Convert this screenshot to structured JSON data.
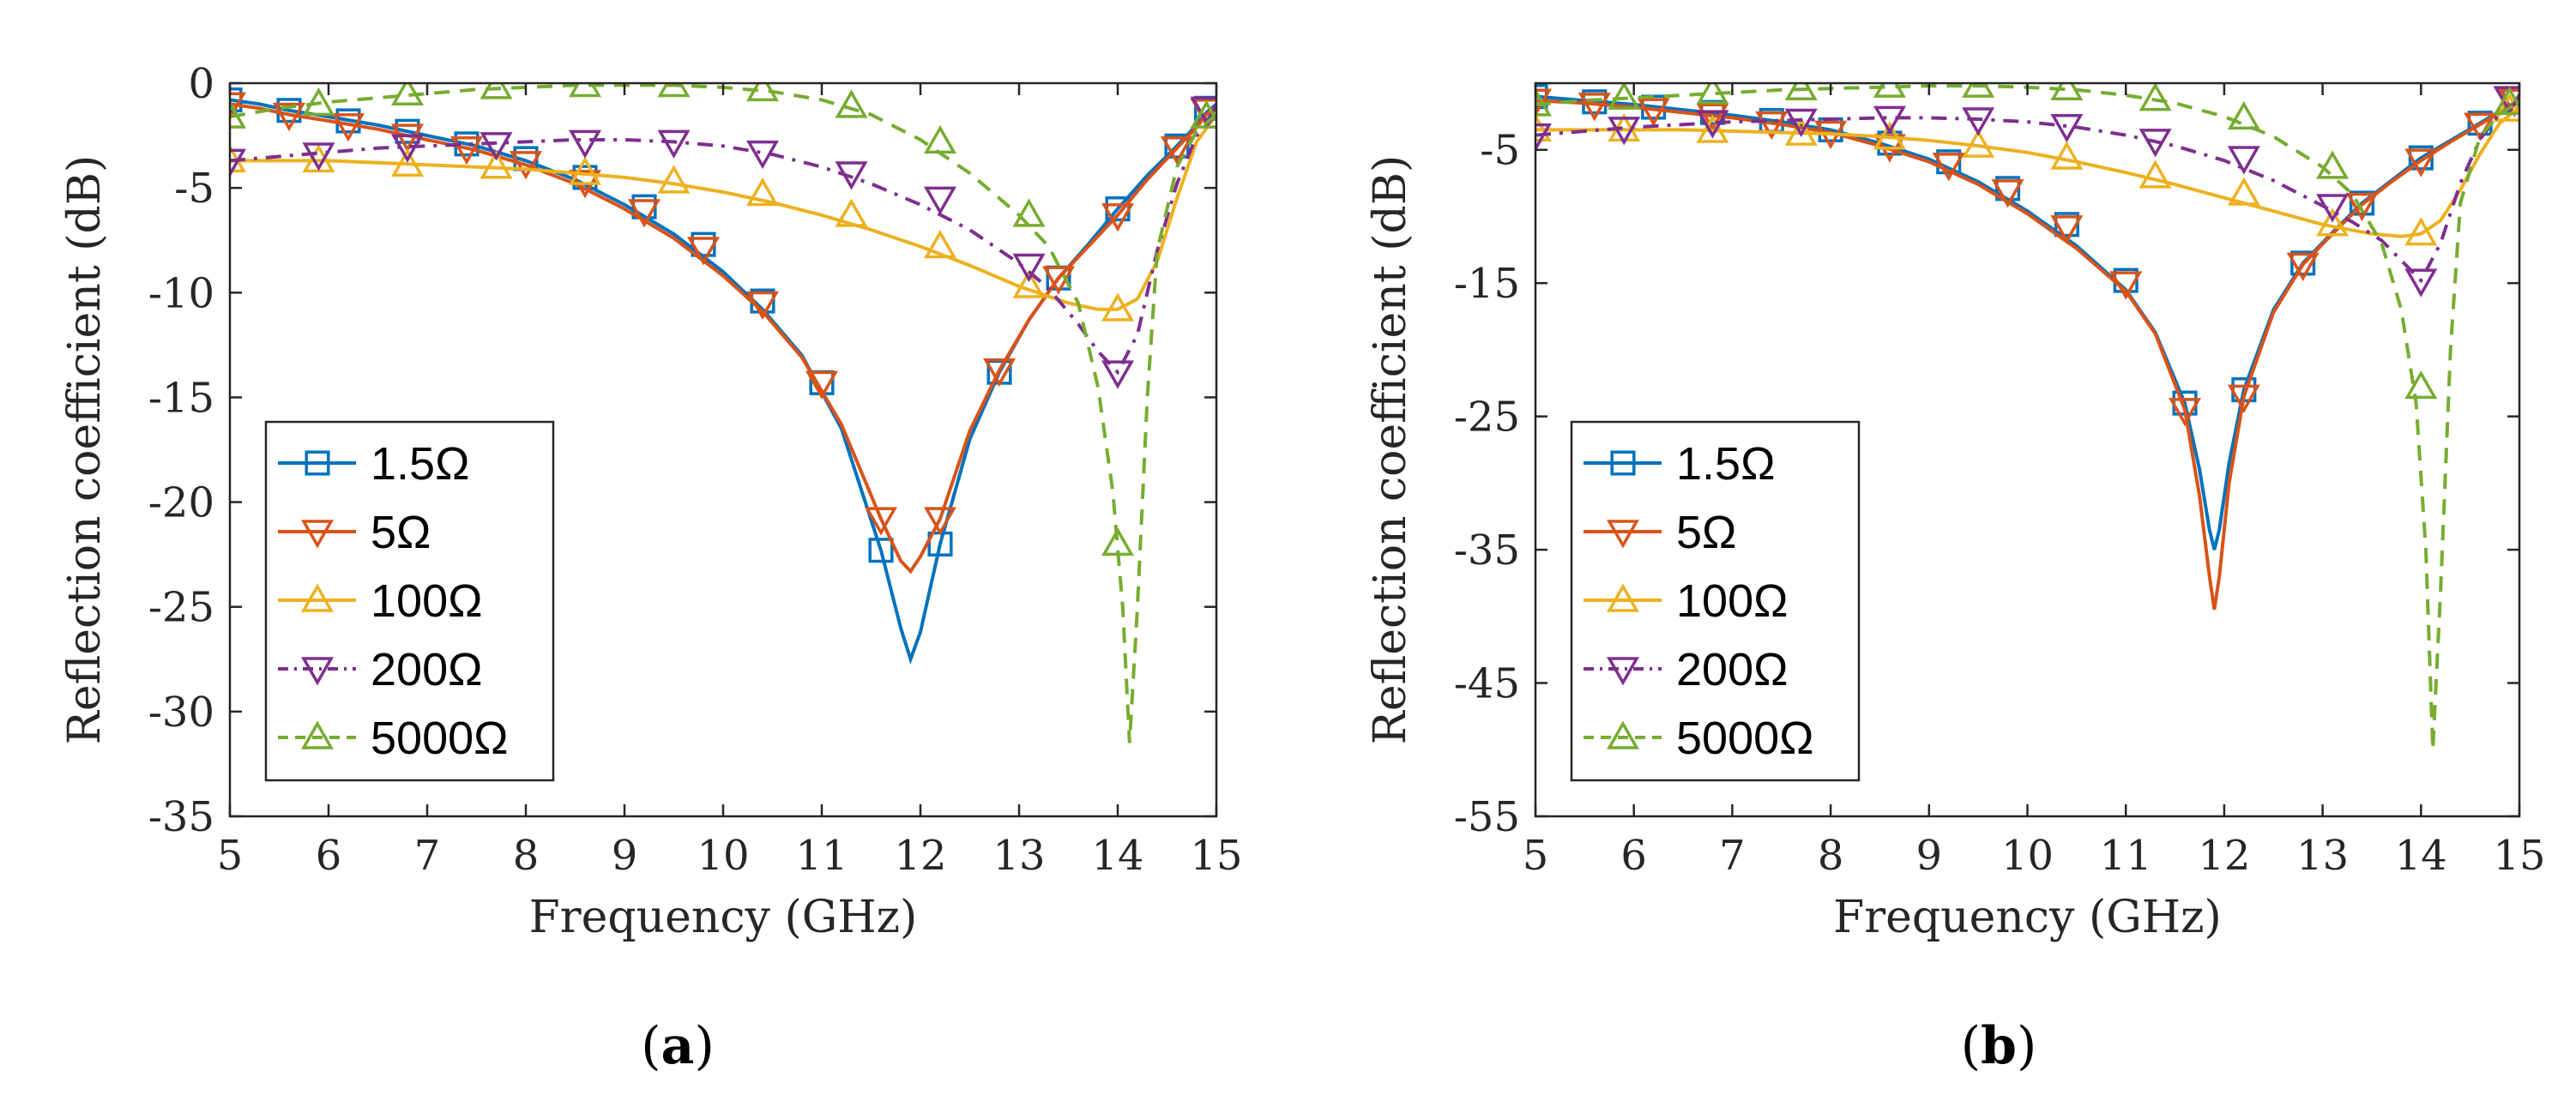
{
  "chart_data": [
    {
      "type": "line",
      "panel_label": "a",
      "xlabel": "Frequency (GHz)",
      "ylabel": "Reflection coefficient (dB)",
      "xlim": [
        5,
        15
      ],
      "ylim": [
        -35,
        0
      ],
      "xticks": [
        5,
        6,
        7,
        8,
        9,
        10,
        11,
        12,
        13,
        14,
        15
      ],
      "yticks": [
        0,
        -5,
        -10,
        -15,
        -20,
        -25,
        -30,
        -35
      ],
      "legend_position": "bottom-left",
      "series": [
        {
          "name": "1.5Ω",
          "color": "#0072BD",
          "dash": "solid",
          "marker": "square",
          "x": [
            5,
            5.3,
            5.6,
            6,
            6.5,
            7,
            7.5,
            8,
            8.5,
            9,
            9.5,
            10,
            10.4,
            10.8,
            11.2,
            11.6,
            11.8,
            11.9,
            12.0,
            12.2,
            12.5,
            12.8,
            13.1,
            13.4,
            13.7,
            14.0,
            14.3,
            14.6,
            14.8,
            14.9,
            15
          ],
          "y": [
            -0.8,
            -1.0,
            -1.3,
            -1.6,
            -2.0,
            -2.5,
            -3.0,
            -3.7,
            -4.6,
            -5.8,
            -7.2,
            -9.0,
            -10.8,
            -13.0,
            -16.5,
            -22.3,
            -26.0,
            -27.5,
            -26.2,
            -22.0,
            -17.0,
            -13.8,
            -11.3,
            -9.3,
            -7.7,
            -6.0,
            -4.4,
            -3.0,
            -2.0,
            -1.4,
            -1.0
          ],
          "marker_x": [
            5,
            5.6,
            6.2,
            6.8,
            7.4,
            8.0,
            8.6,
            9.2,
            9.8,
            10.4,
            11.0,
            11.6,
            12.2,
            12.8,
            13.4,
            14.0,
            14.6,
            14.9
          ],
          "marker_y": [
            -0.8,
            -1.3,
            -1.8,
            -2.3,
            -2.9,
            -3.6,
            -4.5,
            -5.9,
            -7.7,
            -10.4,
            -14.3,
            -22.3,
            -22.0,
            -13.8,
            -9.3,
            -6.0,
            -3.0,
            -1.2
          ]
        },
        {
          "name": "5Ω",
          "color": "#D95319",
          "dash": "solid",
          "marker": "triangle-down",
          "x": [
            5,
            5.3,
            5.6,
            6,
            6.5,
            7,
            7.5,
            8,
            8.5,
            9,
            9.5,
            10,
            10.4,
            10.8,
            11.2,
            11.6,
            11.8,
            11.9,
            12.0,
            12.2,
            12.5,
            12.8,
            13.1,
            13.4,
            13.7,
            14.0,
            14.3,
            14.6,
            14.8,
            14.9,
            15
          ],
          "y": [
            -1.0,
            -1.2,
            -1.5,
            -1.8,
            -2.2,
            -2.7,
            -3.2,
            -3.9,
            -4.8,
            -6.0,
            -7.4,
            -9.2,
            -10.9,
            -13.1,
            -16.3,
            -20.8,
            -22.8,
            -23.3,
            -22.6,
            -20.8,
            -16.6,
            -13.7,
            -11.3,
            -9.3,
            -7.8,
            -6.3,
            -4.6,
            -3.1,
            -2.1,
            -1.5,
            -1.1
          ],
          "marker_x": [
            5,
            5.6,
            6.2,
            6.8,
            7.4,
            8.0,
            8.6,
            9.2,
            9.8,
            10.4,
            11.0,
            11.6,
            12.2,
            12.8,
            13.4,
            14.0,
            14.6,
            14.9
          ],
          "marker_y": [
            -1.0,
            -1.5,
            -2.0,
            -2.5,
            -3.1,
            -3.8,
            -4.7,
            -6.1,
            -7.9,
            -10.5,
            -14.3,
            -20.8,
            -20.8,
            -13.7,
            -9.3,
            -6.3,
            -3.1,
            -1.3
          ]
        },
        {
          "name": "100Ω",
          "color": "#EDB120",
          "dash": "solid",
          "marker": "triangle-up",
          "x": [
            5,
            5.5,
            6,
            6.5,
            7,
            7.5,
            8,
            8.5,
            9,
            9.5,
            10,
            10.5,
            11,
            11.5,
            12,
            12.5,
            13,
            13.5,
            13.8,
            14.0,
            14.2,
            14.4,
            14.6,
            14.8,
            15
          ],
          "y": [
            -3.7,
            -3.7,
            -3.7,
            -3.8,
            -3.9,
            -4.0,
            -4.1,
            -4.3,
            -4.5,
            -4.8,
            -5.2,
            -5.7,
            -6.3,
            -7.0,
            -7.8,
            -8.7,
            -9.7,
            -10.5,
            -10.8,
            -10.8,
            -10.3,
            -8.5,
            -5.5,
            -2.8,
            -1.5
          ],
          "marker_x": [
            5,
            5.9,
            6.8,
            7.7,
            8.6,
            9.5,
            10.4,
            11.3,
            12.2,
            13.1,
            14.0,
            14.9
          ],
          "marker_y": [
            -3.7,
            -3.7,
            -3.9,
            -4.0,
            -4.3,
            -4.7,
            -5.3,
            -6.3,
            -7.8,
            -9.7,
            -10.8,
            -1.6
          ]
        },
        {
          "name": "200Ω",
          "color": "#7E2F8E",
          "dash": "dashdot",
          "marker": "triangle-down",
          "x": [
            5,
            5.5,
            6,
            6.5,
            7,
            7.5,
            8,
            8.5,
            9,
            9.5,
            10,
            10.5,
            11,
            11.5,
            12,
            12.5,
            13,
            13.3,
            13.6,
            13.8,
            14.0,
            14.2,
            14.4,
            14.6,
            14.8,
            15
          ],
          "y": [
            -3.7,
            -3.5,
            -3.3,
            -3.1,
            -3.0,
            -2.9,
            -2.8,
            -2.7,
            -2.7,
            -2.8,
            -3.0,
            -3.4,
            -4.0,
            -4.8,
            -5.8,
            -7.0,
            -8.6,
            -9.8,
            -11.5,
            -12.8,
            -13.8,
            -12.0,
            -8.0,
            -4.8,
            -2.5,
            -1.5
          ],
          "marker_x": [
            5,
            5.9,
            6.8,
            7.7,
            8.6,
            9.5,
            10.4,
            11.3,
            12.2,
            13.1,
            14.0,
            14.9
          ],
          "marker_y": [
            -3.7,
            -3.4,
            -3.0,
            -2.9,
            -2.8,
            -2.8,
            -3.3,
            -4.3,
            -5.5,
            -8.7,
            -13.8,
            -1.2
          ]
        },
        {
          "name": "5000Ω",
          "color": "#77AC30",
          "dash": "dash",
          "marker": "triangle-up",
          "x": [
            5,
            5.5,
            6,
            6.5,
            7,
            7.5,
            8,
            8.5,
            9,
            9.5,
            10,
            10.5,
            11,
            11.5,
            12,
            12.5,
            13,
            13.3,
            13.6,
            13.8,
            13.95,
            14.05,
            14.12,
            14.2,
            14.3,
            14.4,
            14.6,
            14.8,
            15
          ],
          "y": [
            -1.6,
            -1.2,
            -0.9,
            -0.7,
            -0.5,
            -0.3,
            -0.2,
            -0.1,
            -0.1,
            -0.1,
            -0.2,
            -0.4,
            -0.8,
            -1.5,
            -2.7,
            -4.3,
            -6.3,
            -7.8,
            -10.5,
            -14.5,
            -19.5,
            -25.0,
            -31.5,
            -25.0,
            -15.0,
            -8.0,
            -4.0,
            -2.3,
            -1.5
          ],
          "marker_x": [
            5,
            5.9,
            6.8,
            7.7,
            8.6,
            9.5,
            10.4,
            11.3,
            12.2,
            13.1,
            14.0,
            14.9
          ],
          "marker_y": [
            -1.6,
            -1.0,
            -0.5,
            -0.2,
            -0.1,
            -0.1,
            -0.3,
            -1.1,
            -2.8,
            -6.3,
            -22.0,
            -1.6
          ]
        }
      ]
    },
    {
      "type": "line",
      "panel_label": "b",
      "xlabel": "Frequency (GHz)",
      "ylabel": "Reflection coefficient (dB)",
      "xlim": [
        5,
        15
      ],
      "ylim": [
        -55,
        0
      ],
      "xticks": [
        5,
        6,
        7,
        8,
        9,
        10,
        11,
        12,
        13,
        14,
        15
      ],
      "yticks": [
        -5,
        -15,
        -25,
        -35,
        -45,
        -55
      ],
      "legend_position": "bottom-left",
      "series": [
        {
          "name": "1.5Ω",
          "color": "#0072BD",
          "dash": "solid",
          "marker": "square",
          "x": [
            5,
            5.5,
            6,
            6.5,
            7,
            7.5,
            8,
            8.5,
            9,
            9.5,
            10,
            10.5,
            11,
            11.3,
            11.6,
            11.75,
            11.85,
            11.9,
            11.95,
            12.05,
            12.2,
            12.5,
            12.8,
            13.1,
            13.4,
            13.7,
            14.0,
            14.3,
            14.6,
            14.8,
            15
          ],
          "y": [
            -1.0,
            -1.3,
            -1.6,
            -2.0,
            -2.4,
            -2.9,
            -3.5,
            -4.5,
            -5.7,
            -7.4,
            -9.6,
            -12.2,
            -15.5,
            -18.7,
            -24.0,
            -29.0,
            -33.5,
            -35.0,
            -33.5,
            -28.5,
            -23.0,
            -17.0,
            -13.5,
            -11.2,
            -9.0,
            -7.3,
            -5.6,
            -4.3,
            -3.0,
            -2.1,
            -1.3
          ],
          "marker_x": [
            5,
            5.6,
            6.2,
            6.8,
            7.4,
            8.0,
            8.6,
            9.2,
            9.8,
            10.4,
            11.0,
            11.6,
            12.2,
            12.8,
            13.4,
            14.0,
            14.6,
            14.95
          ],
          "marker_y": [
            -1.0,
            -1.4,
            -1.8,
            -2.2,
            -2.8,
            -3.5,
            -4.5,
            -5.9,
            -7.9,
            -10.6,
            -14.8,
            -24.0,
            -23.0,
            -13.5,
            -9.0,
            -5.6,
            -3.0,
            -1.3
          ]
        },
        {
          "name": "5Ω",
          "color": "#D95319",
          "dash": "solid",
          "marker": "triangle-down",
          "x": [
            5,
            5.5,
            6,
            6.5,
            7,
            7.5,
            8,
            8.5,
            9,
            9.5,
            10,
            10.5,
            11,
            11.3,
            11.6,
            11.75,
            11.85,
            11.9,
            11.95,
            12.05,
            12.2,
            12.5,
            12.8,
            13.1,
            13.4,
            13.7,
            14.0,
            14.3,
            14.6,
            14.8,
            15
          ],
          "y": [
            -1.3,
            -1.5,
            -1.8,
            -2.2,
            -2.6,
            -3.1,
            -3.7,
            -4.7,
            -5.9,
            -7.6,
            -9.8,
            -12.4,
            -15.6,
            -18.8,
            -24.5,
            -31.0,
            -37.0,
            -39.5,
            -37.0,
            -30.0,
            -23.5,
            -17.2,
            -13.6,
            -11.3,
            -9.1,
            -7.4,
            -5.8,
            -4.4,
            -3.1,
            -2.2,
            -1.4
          ],
          "marker_x": [
            5,
            5.6,
            6.2,
            6.8,
            7.4,
            8.0,
            8.6,
            9.2,
            9.8,
            10.4,
            11.0,
            11.6,
            12.2,
            12.8,
            13.4,
            14.0,
            14.6,
            14.95
          ],
          "marker_y": [
            -1.3,
            -1.6,
            -2.0,
            -2.4,
            -3.0,
            -3.7,
            -4.7,
            -6.1,
            -8.1,
            -10.8,
            -15.0,
            -24.5,
            -23.5,
            -13.6,
            -9.1,
            -5.8,
            -3.1,
            -1.3
          ]
        },
        {
          "name": "100Ω",
          "color": "#EDB120",
          "dash": "solid",
          "marker": "triangle-up",
          "x": [
            5,
            5.5,
            6,
            6.5,
            7,
            7.5,
            8,
            8.5,
            9,
            9.5,
            10,
            10.5,
            11,
            11.5,
            12,
            12.5,
            13,
            13.5,
            13.8,
            14.0,
            14.2,
            14.4,
            14.6,
            14.8,
            15
          ],
          "y": [
            -3.5,
            -3.5,
            -3.5,
            -3.5,
            -3.6,
            -3.7,
            -3.8,
            -4.0,
            -4.3,
            -4.7,
            -5.2,
            -5.9,
            -6.7,
            -7.6,
            -8.6,
            -9.6,
            -10.6,
            -11.3,
            -11.5,
            -11.3,
            -10.3,
            -8.0,
            -5.3,
            -3.0,
            -1.8
          ],
          "marker_x": [
            5,
            5.9,
            6.8,
            7.7,
            8.6,
            9.5,
            10.4,
            11.3,
            12.2,
            13.1,
            14.0,
            14.9
          ],
          "marker_y": [
            -3.5,
            -3.5,
            -3.6,
            -3.8,
            -4.1,
            -4.7,
            -5.6,
            -7.0,
            -8.3,
            -10.6,
            -11.3,
            -2.0
          ]
        },
        {
          "name": "200Ω",
          "color": "#7E2F8E",
          "dash": "dashdot",
          "marker": "triangle-down",
          "x": [
            5,
            5.5,
            6,
            6.5,
            7,
            7.5,
            8,
            8.5,
            9,
            9.5,
            10,
            10.5,
            11,
            11.5,
            12,
            12.5,
            13,
            13.3,
            13.6,
            13.8,
            14.0,
            14.2,
            14.4,
            14.6,
            14.8,
            15
          ],
          "y": [
            -3.9,
            -3.6,
            -3.3,
            -3.1,
            -2.9,
            -2.8,
            -2.7,
            -2.6,
            -2.6,
            -2.7,
            -2.9,
            -3.3,
            -3.9,
            -4.7,
            -5.8,
            -7.3,
            -9.2,
            -10.4,
            -11.8,
            -13.3,
            -14.8,
            -12.0,
            -7.5,
            -4.2,
            -2.3,
            -1.3
          ],
          "marker_x": [
            5,
            5.9,
            6.8,
            7.7,
            8.6,
            9.5,
            10.4,
            11.3,
            12.2,
            13.1,
            14.0,
            14.9
          ],
          "marker_y": [
            -3.9,
            -3.4,
            -2.9,
            -2.8,
            -2.6,
            -2.7,
            -3.2,
            -4.3,
            -5.6,
            -9.2,
            -14.8,
            -1.1
          ]
        },
        {
          "name": "5000Ω",
          "color": "#77AC30",
          "dash": "dash",
          "marker": "triangle-up",
          "x": [
            5,
            5.5,
            6,
            6.5,
            7,
            7.5,
            8,
            8.5,
            9,
            9.5,
            10,
            10.5,
            11,
            11.5,
            12,
            12.5,
            13,
            13.3,
            13.6,
            13.8,
            13.95,
            14.05,
            14.12,
            14.2,
            14.3,
            14.4,
            14.6,
            14.8,
            15
          ],
          "y": [
            -1.6,
            -1.3,
            -1.1,
            -0.9,
            -0.7,
            -0.5,
            -0.4,
            -0.3,
            -0.2,
            -0.2,
            -0.3,
            -0.5,
            -0.9,
            -1.5,
            -2.5,
            -4.0,
            -6.3,
            -8.3,
            -12.0,
            -17.0,
            -24.0,
            -35.0,
            -50.0,
            -38.0,
            -20.0,
            -9.0,
            -4.0,
            -2.3,
            -1.4
          ],
          "marker_x": [
            5,
            5.9,
            6.8,
            7.7,
            8.6,
            9.5,
            10.4,
            11.3,
            12.2,
            13.1,
            14.0,
            14.9
          ],
          "marker_y": [
            -1.6,
            -1.1,
            -0.7,
            -0.4,
            -0.2,
            -0.2,
            -0.4,
            -1.2,
            -2.6,
            -6.3,
            -22.8,
            -1.5
          ]
        }
      ]
    }
  ]
}
